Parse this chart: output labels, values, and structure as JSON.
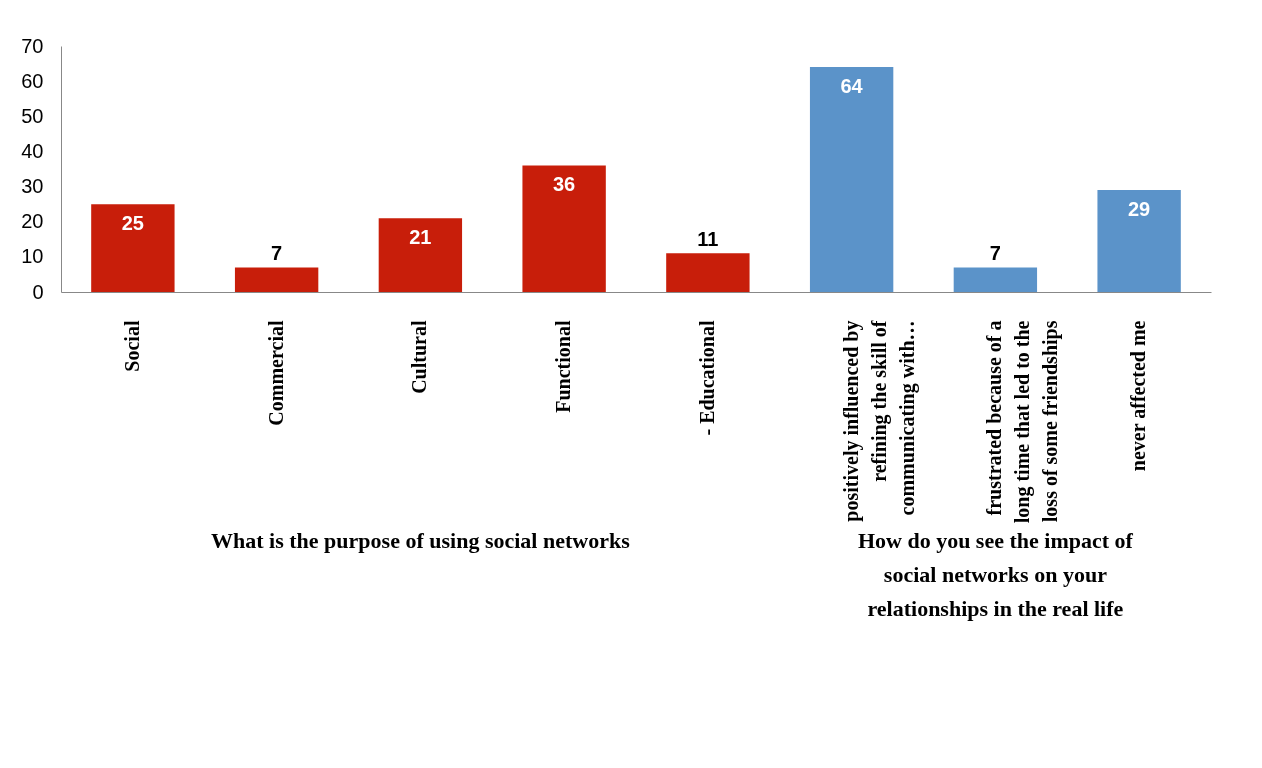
{
  "chart_data": {
    "type": "bar",
    "categories": [
      "Social",
      "Commercial",
      "Cultural",
      "Functional",
      "- Educational",
      "positively influenced by refining the skill of communicating with…",
      "frustrated because of a long time that led to the loss of some friendships",
      "never affected me"
    ],
    "values": [
      25,
      7,
      21,
      36,
      11,
      64,
      7,
      29
    ],
    "colors": [
      "#c81e0a",
      "#c81e0a",
      "#c81e0a",
      "#c81e0a",
      "#c81e0a",
      "#5b93c9",
      "#5b93c9",
      "#5b93c9"
    ],
    "ylim": [
      0,
      70
    ],
    "yticks": [
      0,
      10,
      20,
      30,
      40,
      50,
      60,
      70
    ],
    "grid": false,
    "data_labels": true,
    "annotations": [
      "What is the purpose of using social networks",
      "How do you see the impact of social networks on your relationships in the real life"
    ]
  }
}
